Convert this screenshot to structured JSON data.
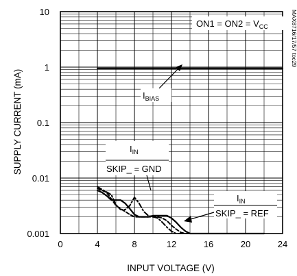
{
  "chart_data": {
    "type": "line",
    "title": "",
    "xlabel": "INPUT VOLTAGE (V)",
    "ylabel": "SUPPLY CURRENT (mA)",
    "xlim": [
      0,
      24
    ],
    "ylim": [
      0.001,
      10
    ],
    "y_scale": "log",
    "grid": true,
    "x_ticks": [
      "0",
      "4",
      "8",
      "12",
      "16",
      "20",
      "24"
    ],
    "y_ticks": [
      "0.001",
      "0.01",
      "0.1",
      "1",
      "10"
    ],
    "condition": {
      "prefix": "ON1 = ON2 = V",
      "subscript": "CC"
    },
    "figure_id": "MAX8716/17/57 toc29",
    "series": [
      {
        "name": "IBIAS",
        "style": "solid",
        "x": [
          4,
          24
        ],
        "y": [
          0.95,
          0.95
        ]
      },
      {
        "name": "IIN SKIP_ = GND",
        "style": "dashed",
        "x": [
          4,
          4.5,
          5,
          5.5,
          6,
          6.5,
          7,
          7.5,
          8,
          8.5,
          9,
          9.5,
          10,
          10.5,
          11,
          11.5,
          12,
          12.5,
          13,
          13.5,
          14,
          14.5,
          22
        ],
        "y": [
          0.0065,
          0.006,
          0.0055,
          0.0042,
          0.0032,
          0.0028,
          0.0025,
          0.0022,
          0.002,
          0.002,
          0.002,
          0.002,
          0.002,
          0.002,
          0.0019,
          0.0017,
          0.0014,
          0.0012,
          0.00105,
          0.001,
          0.001,
          0.001,
          0.001
        ]
      },
      {
        "name": "IIN SKIP_ = REF",
        "style": "solid",
        "x": [
          4,
          4.5,
          5,
          5.5,
          6,
          6.5,
          7,
          7.5,
          8,
          8.5,
          9,
          9.5,
          10,
          10.5,
          11,
          11.5,
          12,
          12.5,
          13,
          13.5,
          14,
          22
        ],
        "y": [
          0.006,
          0.0055,
          0.0048,
          0.004,
          0.004,
          0.004,
          0.0035,
          0.0028,
          0.0022,
          0.002,
          0.002,
          0.002,
          0.0021,
          0.0021,
          0.0021,
          0.0021,
          0.0019,
          0.0016,
          0.0013,
          0.0011,
          0.001,
          0.001
        ]
      },
      {
        "name": "IIN SKIP_ = GND dashed-dot",
        "style": "dashdot",
        "x": [
          4,
          4.5,
          5,
          5.5,
          6,
          6.5,
          7,
          7.5,
          8,
          8.5,
          9,
          9.5,
          10,
          10.5,
          11,
          11.5,
          12,
          12.5,
          13,
          22
        ],
        "y": [
          0.007,
          0.0062,
          0.0056,
          0.005,
          0.0033,
          0.0027,
          0.0027,
          0.0032,
          0.0045,
          0.0035,
          0.0025,
          0.0021,
          0.002,
          0.0019,
          0.0016,
          0.0013,
          0.0011,
          0.001,
          0.001,
          0.001
        ]
      }
    ]
  },
  "annotations": {
    "ibias": {
      "main": "I",
      "sub": "BIAS"
    },
    "iin_gnd": {
      "main": "I",
      "sub": "IN",
      "line2": "SKIP_ = GND"
    },
    "iin_ref": {
      "main": "I",
      "sub": "IN",
      "line2": "SKIP_ = REF"
    }
  }
}
